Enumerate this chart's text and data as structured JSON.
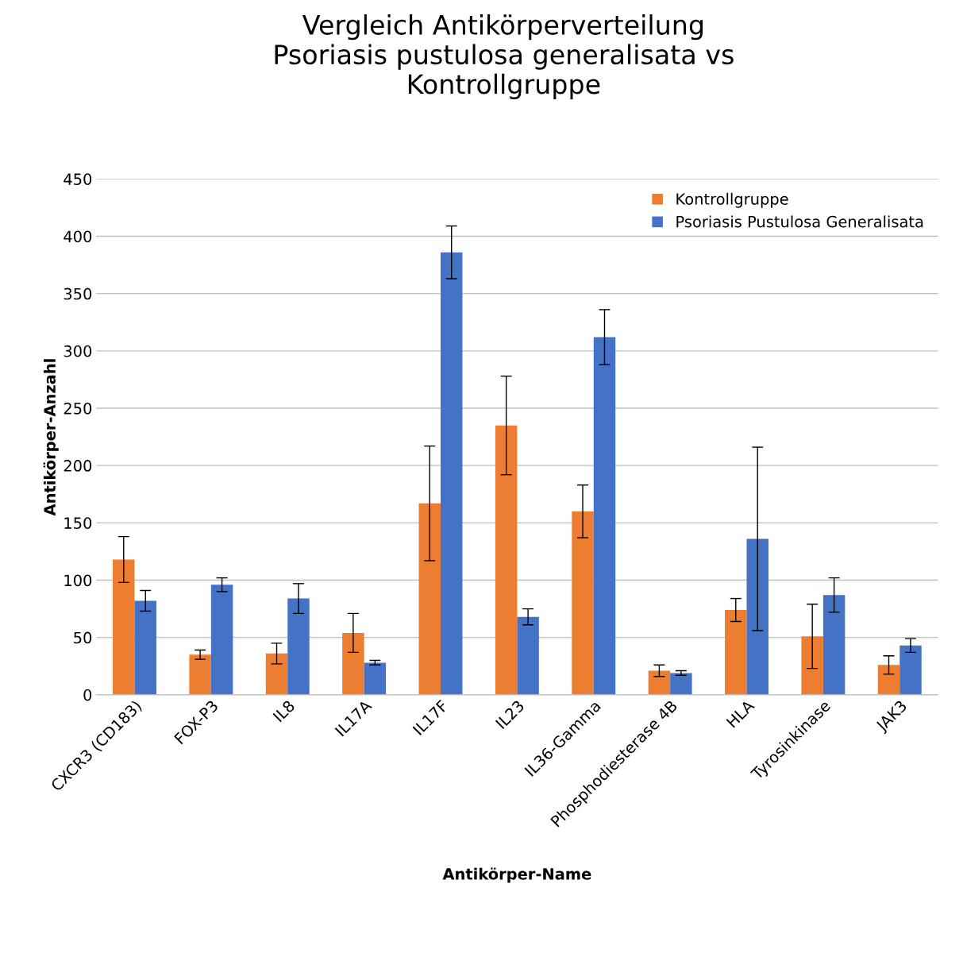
{
  "chart_data": {
    "type": "bar",
    "title": "Vergleich Antikörperverteilung\nPsoriasis pustulosa generalisata vs\nKontrollgruppe",
    "xlabel": "Antikörper-Name",
    "ylabel": "Antikörper-Anzahl",
    "categories": [
      "CXCR3 (CD183)",
      "FOX-P3",
      "IL8",
      "IL17A",
      "IL17F",
      "IL23",
      "IL36-Gamma",
      "Phosphodiesterase 4B",
      "HLA",
      "Tyrosinkinase",
      "JAK3"
    ],
    "series": [
      {
        "name": "Kontrollgruppe",
        "color": "#ed7d31",
        "values": [
          118,
          35,
          36,
          54,
          167,
          235,
          160,
          21,
          74,
          51,
          26
        ],
        "errors": [
          20,
          4,
          9,
          17,
          50,
          43,
          23,
          5,
          10,
          28,
          8
        ]
      },
      {
        "name": "Psoriasis Pustulosa Generalisata",
        "color": "#4472c4",
        "values": [
          82,
          96,
          84,
          28,
          386,
          68,
          312,
          19,
          136,
          87,
          43
        ],
        "errors": [
          9,
          6,
          13,
          2,
          23,
          7,
          24,
          2,
          80,
          15,
          6
        ]
      }
    ],
    "ylim": [
      0,
      450
    ],
    "yticks": [
      0,
      50,
      100,
      150,
      200,
      250,
      300,
      350,
      400,
      450
    ],
    "grid": "y",
    "legend": "top right"
  }
}
